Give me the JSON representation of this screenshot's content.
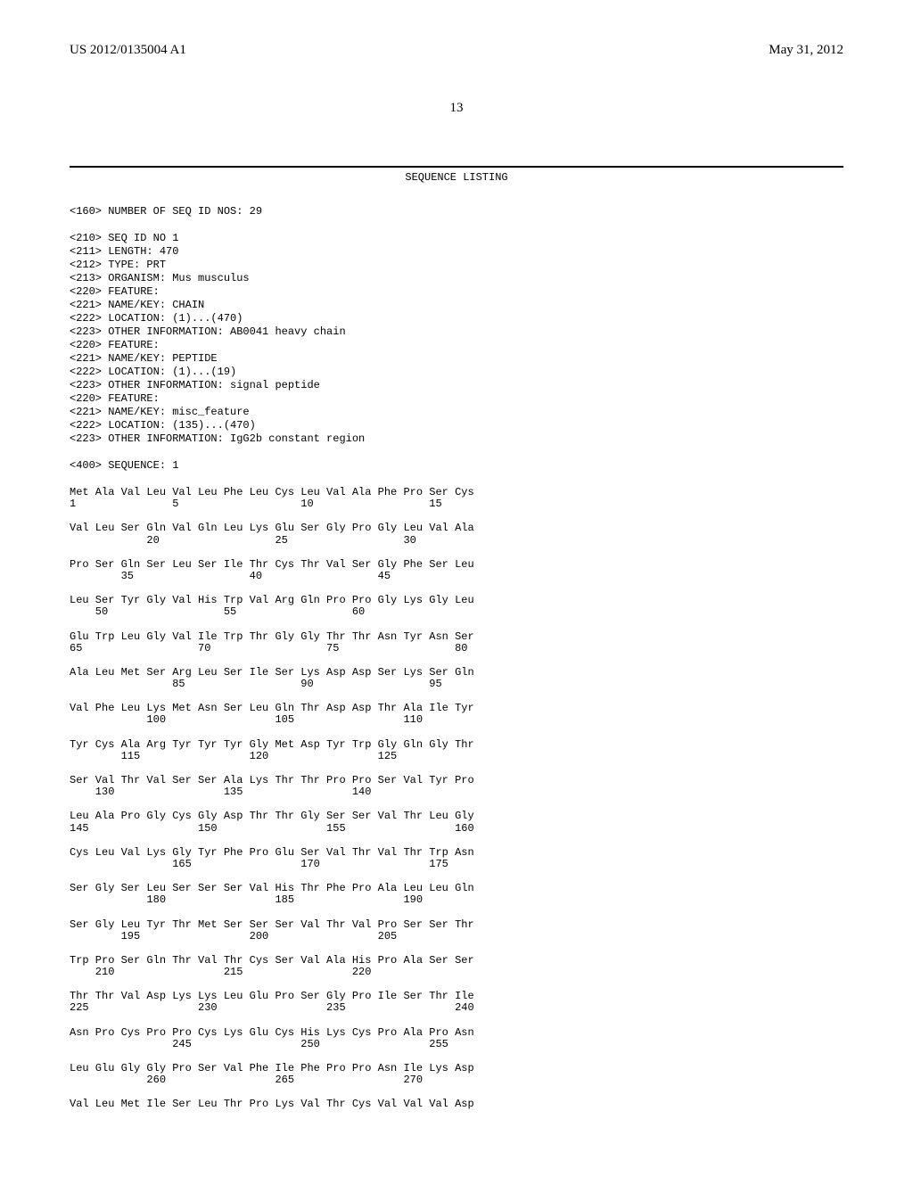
{
  "header": {
    "pub_number": "US 2012/0135004 A1",
    "pub_date": "May 31, 2012"
  },
  "page_number": "13",
  "sequence_listing_title": "SEQUENCE LISTING",
  "metadata_lines": [
    "<160> NUMBER OF SEQ ID NOS: 29",
    "",
    "<210> SEQ ID NO 1",
    "<211> LENGTH: 470",
    "<212> TYPE: PRT",
    "<213> ORGANISM: Mus musculus",
    "<220> FEATURE:",
    "<221> NAME/KEY: CHAIN",
    "<222> LOCATION: (1)...(470)",
    "<223> OTHER INFORMATION: AB0041 heavy chain",
    "<220> FEATURE:",
    "<221> NAME/KEY: PEPTIDE",
    "<222> LOCATION: (1)...(19)",
    "<223> OTHER INFORMATION: signal peptide",
    "<220> FEATURE:",
    "<221> NAME/KEY: misc_feature",
    "<222> LOCATION: (135)...(470)",
    "<223> OTHER INFORMATION: IgG2b constant region",
    "",
    "<400> SEQUENCE: 1"
  ],
  "sequence_rows": [
    {
      "aa": "Met Ala Val Leu Val Leu Phe Leu Cys Leu Val Ala Phe Pro Ser Cys",
      "num": "1               5                   10                  15"
    },
    {
      "aa": "Val Leu Ser Gln Val Gln Leu Lys Glu Ser Gly Pro Gly Leu Val Ala",
      "num": "            20                  25                  30"
    },
    {
      "aa": "Pro Ser Gln Ser Leu Ser Ile Thr Cys Thr Val Ser Gly Phe Ser Leu",
      "num": "        35                  40                  45"
    },
    {
      "aa": "Leu Ser Tyr Gly Val His Trp Val Arg Gln Pro Pro Gly Lys Gly Leu",
      "num": "    50                  55                  60"
    },
    {
      "aa": "Glu Trp Leu Gly Val Ile Trp Thr Gly Gly Thr Thr Asn Tyr Asn Ser",
      "num": "65                  70                  75                  80"
    },
    {
      "aa": "Ala Leu Met Ser Arg Leu Ser Ile Ser Lys Asp Asp Ser Lys Ser Gln",
      "num": "                85                  90                  95"
    },
    {
      "aa": "Val Phe Leu Lys Met Asn Ser Leu Gln Thr Asp Asp Thr Ala Ile Tyr",
      "num": "            100                 105                 110"
    },
    {
      "aa": "Tyr Cys Ala Arg Tyr Tyr Tyr Gly Met Asp Tyr Trp Gly Gln Gly Thr",
      "num": "        115                 120                 125"
    },
    {
      "aa": "Ser Val Thr Val Ser Ser Ala Lys Thr Thr Pro Pro Ser Val Tyr Pro",
      "num": "    130                 135                 140"
    },
    {
      "aa": "Leu Ala Pro Gly Cys Gly Asp Thr Thr Gly Ser Ser Val Thr Leu Gly",
      "num": "145                 150                 155                 160"
    },
    {
      "aa": "Cys Leu Val Lys Gly Tyr Phe Pro Glu Ser Val Thr Val Thr Trp Asn",
      "num": "                165                 170                 175"
    },
    {
      "aa": "Ser Gly Ser Leu Ser Ser Ser Val His Thr Phe Pro Ala Leu Leu Gln",
      "num": "            180                 185                 190"
    },
    {
      "aa": "Ser Gly Leu Tyr Thr Met Ser Ser Ser Val Thr Val Pro Ser Ser Thr",
      "num": "        195                 200                 205"
    },
    {
      "aa": "Trp Pro Ser Gln Thr Val Thr Cys Ser Val Ala His Pro Ala Ser Ser",
      "num": "    210                 215                 220"
    },
    {
      "aa": "Thr Thr Val Asp Lys Lys Leu Glu Pro Ser Gly Pro Ile Ser Thr Ile",
      "num": "225                 230                 235                 240"
    },
    {
      "aa": "Asn Pro Cys Pro Pro Cys Lys Glu Cys His Lys Cys Pro Ala Pro Asn",
      "num": "                245                 250                 255"
    },
    {
      "aa": "Leu Glu Gly Gly Pro Ser Val Phe Ile Phe Pro Pro Asn Ile Lys Asp",
      "num": "            260                 265                 270"
    },
    {
      "aa": "Val Leu Met Ile Ser Leu Thr Pro Lys Val Thr Cys Val Val Val Asp",
      "num": ""
    }
  ],
  "colors": {
    "text": "#000000",
    "background": "#ffffff",
    "rule": "#000000"
  },
  "typography": {
    "header_font": "Times New Roman",
    "header_size_pt": 11,
    "mono_font": "Courier New",
    "mono_size_pt": 9
  }
}
